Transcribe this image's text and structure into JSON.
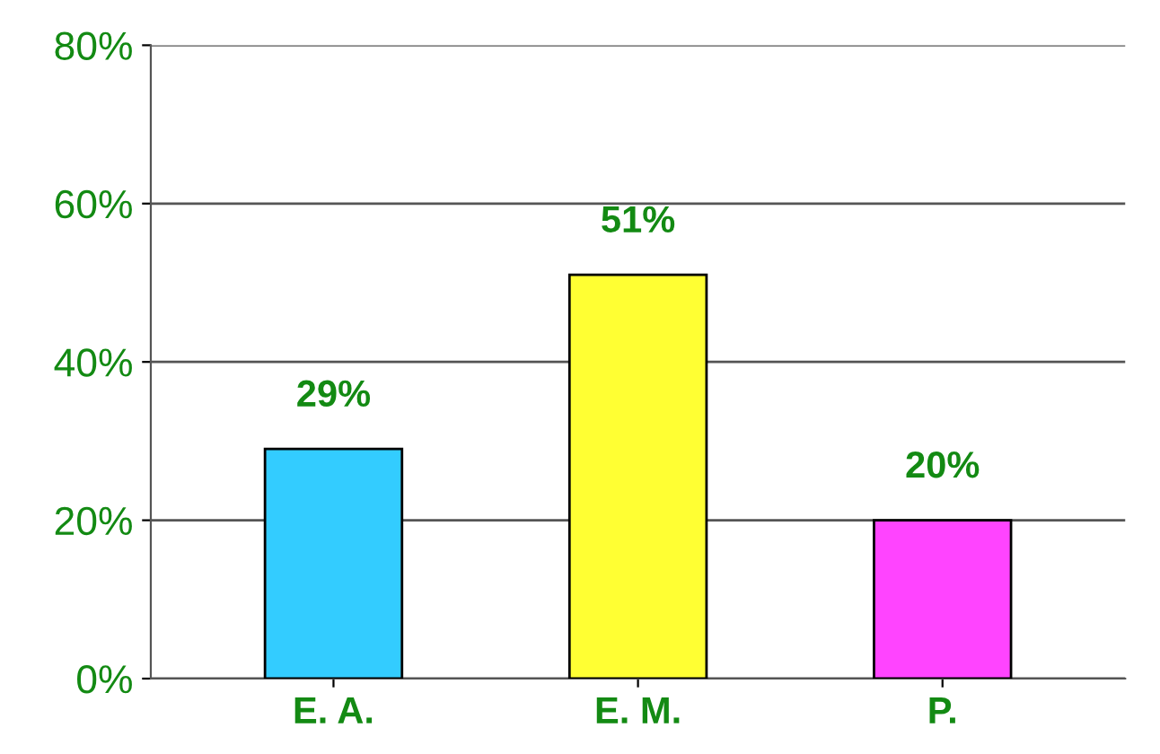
{
  "chart_data": {
    "type": "bar",
    "categories": [
      "E. A.",
      "E. M.",
      "P."
    ],
    "values": [
      29,
      51,
      20
    ],
    "colors": [
      "#33ccff",
      "#ffff33",
      "#ff44ff"
    ],
    "value_labels": [
      "29%",
      "51%",
      "20%"
    ],
    "ylim": [
      0,
      80
    ],
    "yticks": [
      {
        "value": 0,
        "label": "0%"
      },
      {
        "value": 20,
        "label": "20%"
      },
      {
        "value": 40,
        "label": "40%"
      },
      {
        "value": 60,
        "label": "60%"
      },
      {
        "value": 80,
        "label": "80%"
      }
    ],
    "grid": "y"
  }
}
